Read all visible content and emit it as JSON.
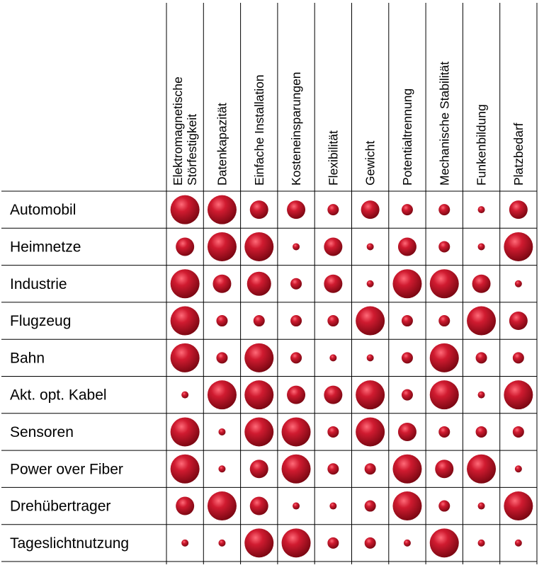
{
  "chart_data": {
    "type": "bubble-matrix",
    "columns": [
      [
        "Elektromagnetische",
        "Störfestigkeit"
      ],
      [
        "Datenkapazität"
      ],
      [
        "Einfache Installation"
      ],
      [
        "Kosteneinsparungen"
      ],
      [
        "Flexibilität"
      ],
      [
        "Gewicht"
      ],
      [
        "Potentialtrennung"
      ],
      [
        "Mechanische Stabilität"
      ],
      [
        "Funkenbildung"
      ],
      [
        "Platzbedarf"
      ]
    ],
    "rows": [
      "Automobil",
      "Heimnetze",
      "Industrie",
      "Flugzeug",
      "Bahn",
      "Akt. opt. Kabel",
      "Sensoren",
      "Power over Fiber",
      "Drehübertrager",
      "Tageslichtnutzung"
    ],
    "scale": "relative importance 1 (smallest) to 5 (largest), shown by bubble size",
    "values": [
      [
        5,
        5,
        3,
        3,
        2,
        3,
        2,
        2,
        1,
        3
      ],
      [
        3,
        5,
        5,
        1,
        3,
        1,
        3,
        2,
        1,
        5
      ],
      [
        5,
        3,
        4,
        2,
        3,
        1,
        5,
        5,
        3,
        1
      ],
      [
        5,
        2,
        2,
        2,
        2,
        5,
        2,
        2,
        5,
        3
      ],
      [
        5,
        2,
        5,
        2,
        1,
        1,
        2,
        5,
        2,
        2
      ],
      [
        1,
        5,
        5,
        3,
        3,
        5,
        2,
        5,
        1,
        5
      ],
      [
        5,
        1,
        5,
        5,
        2,
        5,
        3,
        2,
        2,
        2
      ],
      [
        5,
        1,
        3,
        5,
        2,
        2,
        5,
        3,
        5,
        1
      ],
      [
        3,
        5,
        3,
        1,
        1,
        2,
        5,
        2,
        1,
        5
      ],
      [
        1,
        1,
        5,
        5,
        2,
        2,
        1,
        5,
        1,
        1
      ]
    ],
    "color": "#c8102e"
  }
}
